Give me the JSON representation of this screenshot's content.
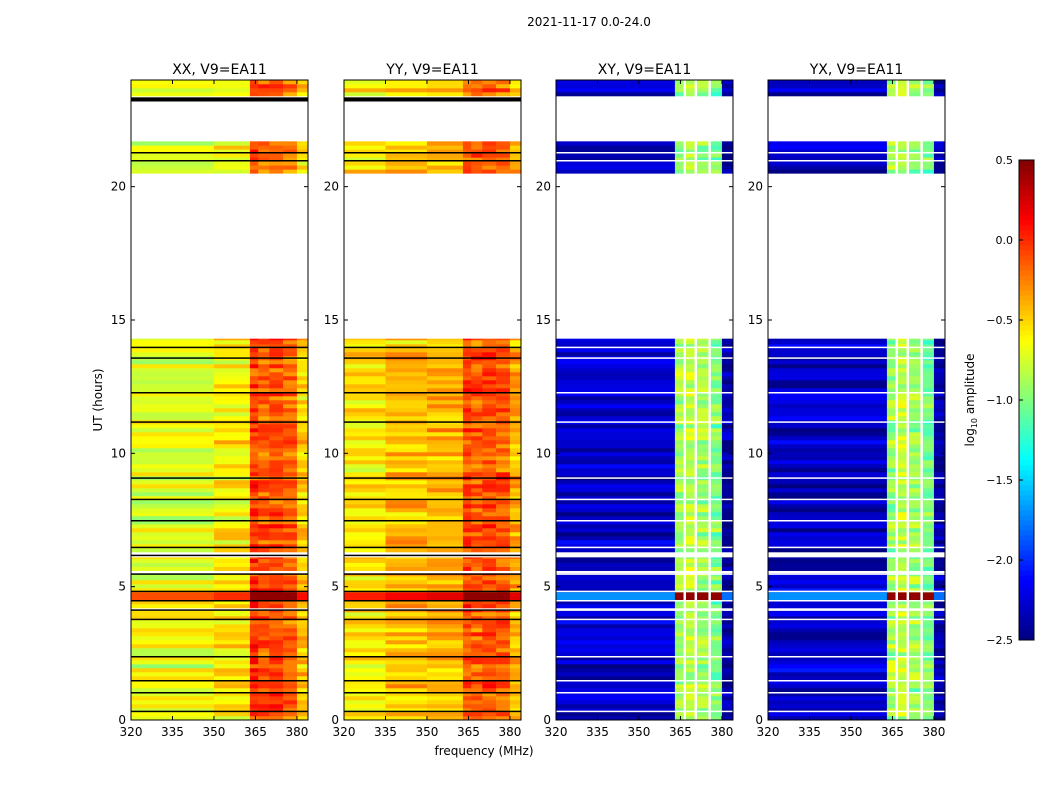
{
  "chart_data": {
    "type": "heatmap",
    "title": "2021-11-17 0.0-24.0",
    "xlabel": "frequency (MHz)",
    "ylabel": "UT (hours)",
    "xlim": [
      320,
      384
    ],
    "ylim": [
      0,
      24
    ],
    "xticks": [
      "320",
      "335",
      "350",
      "365",
      "380"
    ],
    "yticks": [
      "0",
      "5",
      "10",
      "15",
      "20"
    ],
    "colorbar": {
      "label": "log10 amplitude",
      "label_main": "log",
      "label_sub": "10",
      "label_rest": " amplitude",
      "range": [
        -2.5,
        0.5
      ],
      "ticks": [
        "0.5",
        "0.0",
        "−0.5",
        "−1.0",
        "−1.5",
        "−2.0",
        "−2.5"
      ],
      "colormap": "jet"
    },
    "time_segments_hours": [
      [
        0,
        4.1
      ],
      [
        4.2,
        5.5
      ],
      [
        5.6,
        6.1
      ],
      [
        6.3,
        14.3
      ],
      [
        20.5,
        21.7
      ],
      [
        23.4,
        24
      ]
    ],
    "hot_rows_hours": [
      [
        4.5,
        4.8
      ]
    ],
    "panels": [
      {
        "title": "XX, V9=EA11",
        "flag_color": "#000000",
        "bands": [
          [
            320,
            350,
            -0.7
          ],
          [
            350,
            363,
            -0.6
          ],
          [
            363,
            366,
            -0.05
          ],
          [
            366,
            370,
            -0.15
          ],
          [
            370,
            375,
            -0.1
          ],
          [
            375,
            380,
            -0.2
          ],
          [
            380,
            384,
            -0.5
          ]
        ],
        "hot_row_value": 0.45
      },
      {
        "title": "YY, V9=EA11",
        "flag_color": "#000000",
        "bands": [
          [
            320,
            335,
            -0.55
          ],
          [
            335,
            350,
            -0.45
          ],
          [
            350,
            363,
            -0.4
          ],
          [
            363,
            366,
            -0.1
          ],
          [
            366,
            370,
            -0.15
          ],
          [
            370,
            375,
            -0.1
          ],
          [
            375,
            380,
            -0.15
          ],
          [
            380,
            384,
            -0.4
          ]
        ],
        "hot_row_value": 0.45
      },
      {
        "title": "XY, V9=EA11",
        "flag_color": "#ffffff",
        "bands": [
          [
            320,
            363,
            -2.3
          ],
          [
            363,
            366,
            -0.9
          ],
          [
            366,
            367,
            null
          ],
          [
            367,
            370,
            -0.8
          ],
          [
            370,
            371,
            null
          ],
          [
            371,
            375,
            -0.9
          ],
          [
            375,
            376,
            null
          ],
          [
            376,
            380,
            -1.0
          ],
          [
            380,
            384,
            -2.4
          ]
        ],
        "hot_row_value": 0.45
      },
      {
        "title": "YX, V9=EA11",
        "flag_color": "#ffffff",
        "bands": [
          [
            320,
            363,
            -2.3
          ],
          [
            363,
            366,
            -0.9
          ],
          [
            366,
            367,
            null
          ],
          [
            367,
            370,
            -0.8
          ],
          [
            370,
            371,
            null
          ],
          [
            371,
            375,
            -0.9
          ],
          [
            375,
            376,
            null
          ],
          [
            376,
            380,
            -1.0
          ],
          [
            380,
            384,
            -2.4
          ]
        ],
        "hot_row_value": 0.45
      }
    ]
  }
}
